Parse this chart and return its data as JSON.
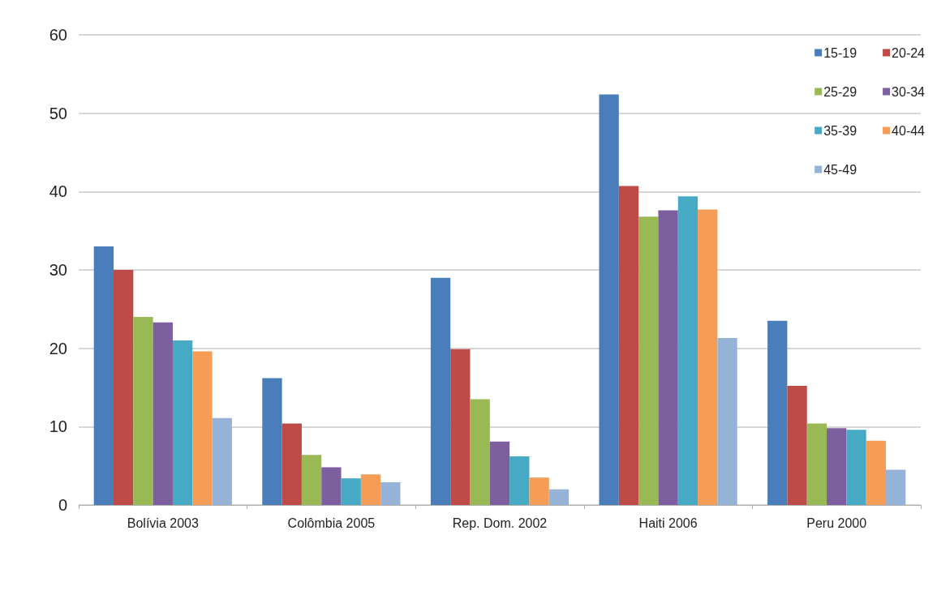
{
  "chart_data": {
    "type": "bar",
    "categories": [
      "Bolívia 2003",
      "Colômbia 2005",
      "Rep. Dom. 2002",
      "Haiti 2006",
      "Peru 2000"
    ],
    "series": [
      {
        "name": "15-19",
        "color": "#4a7ebb",
        "values": [
          33,
          16.2,
          29,
          52.4,
          23.5
        ]
      },
      {
        "name": "20-24",
        "color": "#be4b48",
        "values": [
          30,
          10.4,
          19.9,
          40.7,
          15.2
        ]
      },
      {
        "name": "25-29",
        "color": "#98b954",
        "values": [
          24,
          6.4,
          13.5,
          36.8,
          10.4
        ]
      },
      {
        "name": "30-34",
        "color": "#7d5fa0",
        "values": [
          23.3,
          4.8,
          8.1,
          37.6,
          9.8
        ]
      },
      {
        "name": "35-39",
        "color": "#46aac5",
        "values": [
          21,
          3.4,
          6.2,
          39.4,
          9.6
        ]
      },
      {
        "name": "40-44",
        "color": "#f59d56",
        "values": [
          19.6,
          3.9,
          3.5,
          37.7,
          8.2
        ]
      },
      {
        "name": "45-49",
        "color": "#95b3d7",
        "values": [
          11.1,
          2.9,
          2,
          21.3,
          4.5
        ]
      }
    ],
    "ylim": [
      0,
      60
    ],
    "yticks": [
      0,
      10,
      20,
      30,
      40,
      50,
      60
    ],
    "grid": "y",
    "legend": "top right"
  }
}
